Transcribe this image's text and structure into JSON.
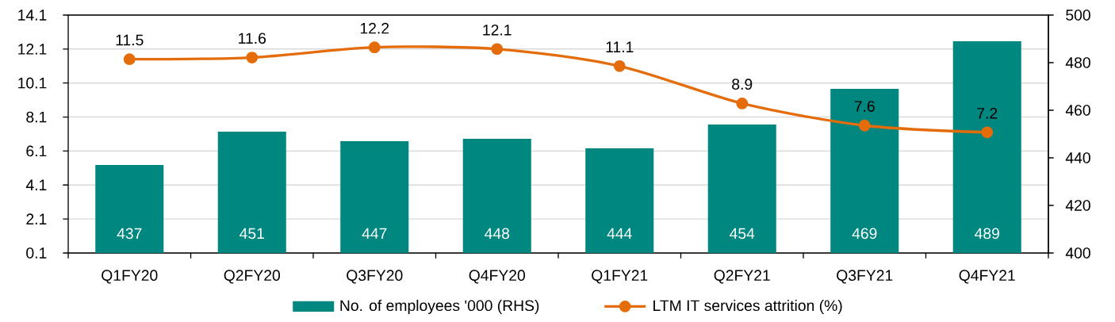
{
  "chart_data": {
    "type": "bar",
    "categories": [
      "Q1FY20",
      "Q2FY20",
      "Q3FY20",
      "Q4FY20",
      "Q1FY21",
      "Q2FY21",
      "Q3FY21",
      "Q4FY21"
    ],
    "series": [
      {
        "name": "No. of employees '000 (RHS)",
        "color": "#00877f",
        "axis": "y2",
        "values": [
          437,
          451,
          447,
          448,
          444,
          454,
          469,
          489
        ]
      },
      {
        "name": "LTM IT services attrition (%)",
        "type": "line",
        "color": "#e46c0a",
        "axis": "y",
        "marker": "circle",
        "values": [
          11.5,
          11.6,
          12.2,
          12.1,
          11.1,
          8.9,
          7.6,
          7.2
        ]
      }
    ],
    "ylim": [
      0.1,
      14.1
    ],
    "yticks": [
      0.1,
      2.1,
      4.1,
      6.1,
      8.1,
      10.1,
      12.1,
      14.1
    ],
    "y2lim": [
      400,
      500
    ],
    "y2ticks": [
      400,
      420,
      440,
      460,
      480,
      500
    ],
    "grid": "y",
    "legend": "bottom",
    "data_labels": true
  }
}
